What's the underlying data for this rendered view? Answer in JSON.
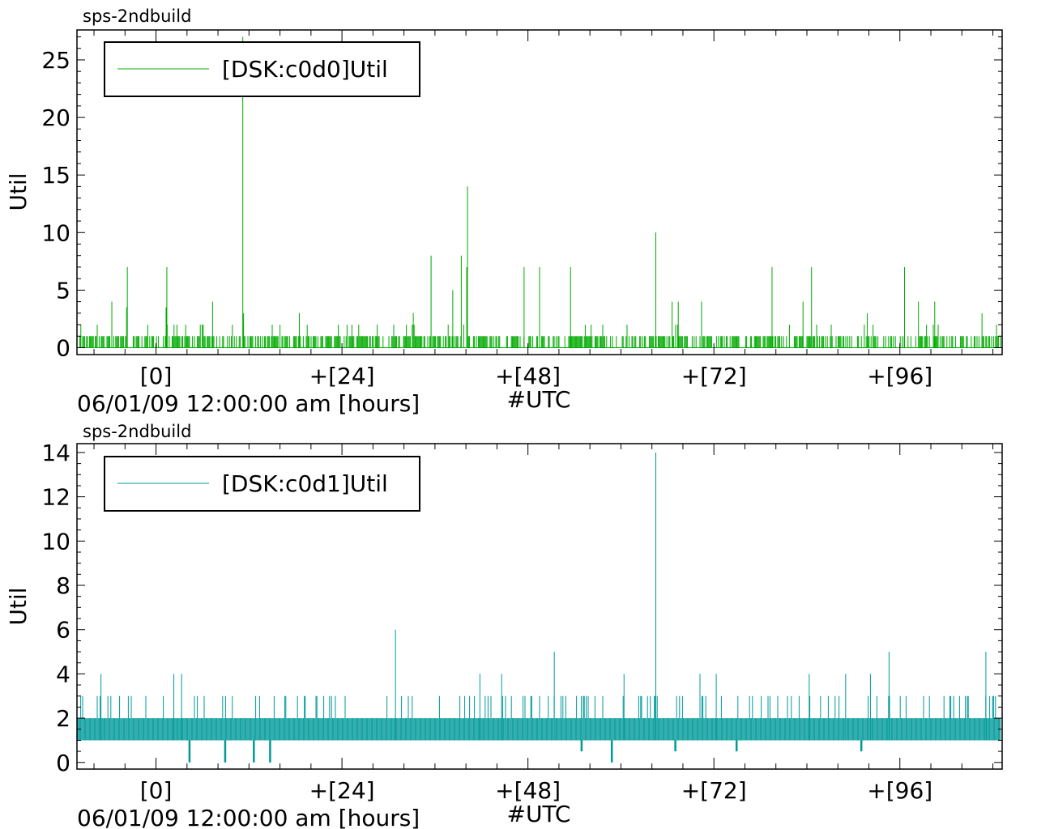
{
  "chart_data": [
    {
      "type": "line",
      "title": "sps-2ndbuild",
      "ylabel": "Util",
      "xlabel": "06/01/09 12:00:00 am [hours]",
      "xlabel_right": "#UTC",
      "xlim": [
        -10.2,
        109.2
      ],
      "ylim": [
        -0.6,
        27.6
      ],
      "yticks": [
        0,
        5,
        10,
        15,
        20,
        25
      ],
      "xticks": [
        {
          "v": 0,
          "label": "[0]"
        },
        {
          "v": 24,
          "label": "+[24]"
        },
        {
          "v": 48,
          "label": "+[48]"
        },
        {
          "v": 72,
          "label": "+[72]"
        },
        {
          "v": 96,
          "label": "+[96]"
        }
      ],
      "legend": {
        "position": "top-left",
        "entries": [
          "[DSK:c0d0]Util"
        ]
      },
      "grid": false,
      "color": "#00aa00",
      "series": [
        {
          "name": "[DSK:c0d0]Util",
          "baseline_range": [
            0,
            1
          ],
          "spikes": [
            [
              -9.7,
              2
            ],
            [
              -5.7,
              4
            ],
            [
              -3.8,
              3.5
            ],
            [
              -3.7,
              7
            ],
            [
              1.3,
              3.5
            ],
            [
              1.4,
              7
            ],
            [
              7.3,
              4
            ],
            [
              11.2,
              27
            ],
            [
              11.3,
              3
            ],
            [
              18.5,
              3
            ],
            [
              33.2,
              3
            ],
            [
              35.5,
              8
            ],
            [
              38.3,
              5
            ],
            [
              39.4,
              8
            ],
            [
              40.1,
              7
            ],
            [
              40.2,
              14
            ],
            [
              47.5,
              7
            ],
            [
              49.5,
              7
            ],
            [
              53.5,
              7
            ],
            [
              64.5,
              10
            ],
            [
              66.6,
              4
            ],
            [
              67.4,
              4
            ],
            [
              70.4,
              4
            ],
            [
              79.5,
              7
            ],
            [
              83.5,
              4
            ],
            [
              84.6,
              7
            ],
            [
              91.8,
              3
            ],
            [
              96.6,
              7
            ],
            [
              98.4,
              4
            ],
            [
              100.5,
              4
            ],
            [
              106.6,
              3
            ]
          ]
        }
      ]
    },
    {
      "type": "line",
      "title": "sps-2ndbuild",
      "ylabel": "Util",
      "xlabel": "06/01/09 12:00:00 am [hours]",
      "xlabel_right": "#UTC",
      "xlim": [
        -10.2,
        109.2
      ],
      "ylim": [
        -0.3,
        14.4
      ],
      "yticks": [
        0,
        2,
        4,
        6,
        8,
        10,
        12,
        14
      ],
      "xticks": [
        {
          "v": 0,
          "label": "[0]"
        },
        {
          "v": 24,
          "label": "+[24]"
        },
        {
          "v": 48,
          "label": "+[48]"
        },
        {
          "v": 72,
          "label": "+[72]"
        },
        {
          "v": 96,
          "label": "+[96]"
        }
      ],
      "legend": {
        "position": "top-left",
        "entries": [
          "[DSK:c0d1]Util"
        ]
      },
      "grid": false,
      "color": "#009999",
      "series": [
        {
          "name": "[DSK:c0d1]Util",
          "baseline_range": [
            1,
            2
          ],
          "spikes": [
            [
              -7.1,
              4
            ],
            [
              2.3,
              4
            ],
            [
              3.3,
              4
            ],
            [
              30.9,
              6
            ],
            [
              41.8,
              4
            ],
            [
              44.6,
              4
            ],
            [
              51.4,
              5
            ],
            [
              60.4,
              4
            ],
            [
              64.5,
              14
            ],
            [
              70.2,
              4
            ],
            [
              72.3,
              4
            ],
            [
              84.3,
              4
            ],
            [
              89,
              4
            ],
            [
              92.2,
              4
            ],
            [
              94.6,
              5
            ],
            [
              107.1,
              5
            ]
          ],
          "dips": [
            [
              4.3,
              0
            ],
            [
              8.9,
              0
            ],
            [
              12.6,
              0
            ],
            [
              14.7,
              0
            ],
            [
              54.9,
              0.5
            ],
            [
              58.8,
              0
            ],
            [
              67,
              0.5
            ],
            [
              74.9,
              0.5
            ],
            [
              91,
              0.5
            ]
          ]
        }
      ]
    }
  ]
}
